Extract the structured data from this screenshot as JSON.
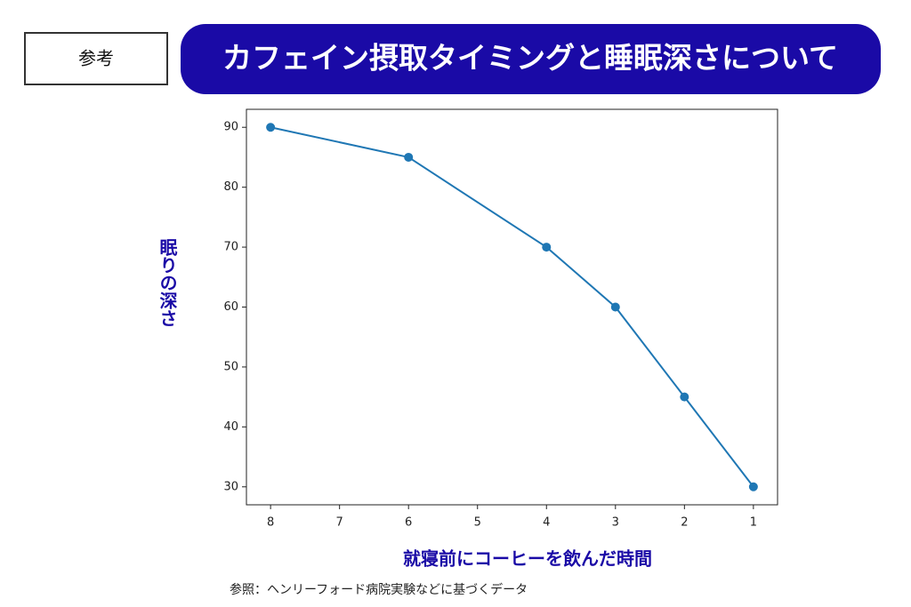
{
  "header": {
    "tag": "参考",
    "title": "カフェイン摂取タイミングと睡眠深さについて"
  },
  "chart_data": {
    "type": "line",
    "x_label": "就寝前にコーヒーを飲んだ時間",
    "y_label": "眠りの深さ",
    "x": [
      8,
      6,
      4,
      3,
      2,
      1
    ],
    "series": [
      {
        "color": "#1f77b4",
        "values": [
          90,
          85,
          70,
          60,
          45,
          30
        ]
      }
    ],
    "xlim": [
      8.35,
      0.65
    ],
    "xticks": [
      8,
      7,
      6,
      5,
      4,
      3,
      2,
      1
    ],
    "ylim": [
      27,
      93
    ],
    "yticks": [
      30,
      40,
      50,
      60,
      70,
      80,
      90
    ],
    "grid": false
  },
  "footnote": "参照：ヘンリーフォード病院実験などに基づくデータ"
}
